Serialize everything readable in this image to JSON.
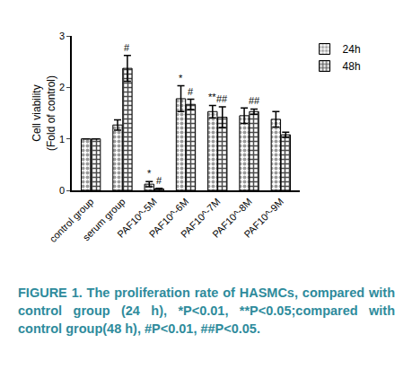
{
  "chart_data": {
    "type": "bar",
    "y_label": "Cell viability\n(Fold of control)",
    "categories": [
      "control group",
      "serum group",
      "PAF10^-5M",
      "PAF10^-6M",
      "PAF10^-7M",
      "PAF10^-8M",
      "PAF10^-9M"
    ],
    "series": [
      {
        "name": "24h",
        "color": "#9a9a9a",
        "values": [
          1.0,
          1.27,
          0.12,
          1.78,
          1.53,
          1.45,
          1.38
        ],
        "errors": [
          0.0,
          0.1,
          0.05,
          0.25,
          0.12,
          0.15,
          0.15
        ]
      },
      {
        "name": "48h",
        "color": "#4a4a4a",
        "values": [
          1.0,
          2.37,
          0.03,
          1.67,
          1.42,
          1.53,
          1.08
        ],
        "errors": [
          0.0,
          0.25,
          0.01,
          0.1,
          0.2,
          0.05,
          0.05
        ]
      }
    ],
    "annotations": [
      {
        "text": "#",
        "category": 1,
        "series": 1
      },
      {
        "text": "*",
        "category": 2,
        "series": 0
      },
      {
        "text": "#",
        "category": 2,
        "series": 1
      },
      {
        "text": "*",
        "category": 3,
        "series": 0
      },
      {
        "text": "#",
        "category": 3,
        "series": 1
      },
      {
        "text": "**",
        "category": 4,
        "series": 0
      },
      {
        "text": "##",
        "category": 4,
        "series": 1
      },
      {
        "text": "##",
        "category": 5,
        "series": 1
      }
    ],
    "ylim": [
      0,
      3
    ],
    "yticks": [
      0,
      1,
      2,
      3
    ],
    "grid": false,
    "legend": "top right",
    "caption": "FIGURE 1. The proliferation rate of HASMCs, compared with control group (24 h), *P<0.01, **P<0.05;compared with control group(48 h), #P<0.01, ##P<0.05."
  }
}
